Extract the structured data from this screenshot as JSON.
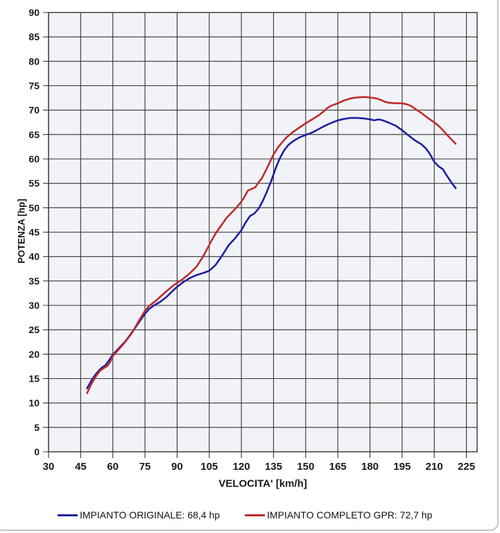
{
  "chart_data": {
    "type": "line",
    "title": "",
    "xlabel": "VELOCITA' [km/h]",
    "ylabel": "POTENZA [hp]",
    "xlim": [
      30,
      230
    ],
    "ylim": [
      0,
      90
    ],
    "xticks": [
      30,
      45,
      60,
      75,
      90,
      105,
      120,
      135,
      150,
      165,
      180,
      195,
      210,
      225
    ],
    "yticks": [
      0,
      5,
      10,
      15,
      20,
      25,
      30,
      35,
      40,
      45,
      50,
      55,
      60,
      65,
      70,
      75,
      80,
      85,
      90
    ],
    "grid": true,
    "legend_position": "bottom",
    "plot_bg": "#f2f3f8",
    "grid_color": "#333333",
    "label_color": "#1a1a1a",
    "series": [
      {
        "name": "IMPIANTO ORIGINALE: 68,4 hp",
        "color": "#1f1fa0",
        "points": [
          [
            48,
            13.0
          ],
          [
            50,
            14.6
          ],
          [
            52,
            15.9
          ],
          [
            54,
            16.9
          ],
          [
            55,
            17.3
          ],
          [
            56.5,
            17.7
          ],
          [
            58,
            18.6
          ],
          [
            60,
            19.9
          ],
          [
            63,
            21.3
          ],
          [
            66,
            22.7
          ],
          [
            69,
            24.5
          ],
          [
            72,
            26.4
          ],
          [
            75,
            28.3
          ],
          [
            77,
            29.3
          ],
          [
            80,
            30.2
          ],
          [
            82,
            30.7
          ],
          [
            85,
            31.7
          ],
          [
            88,
            33.0
          ],
          [
            90,
            33.8
          ],
          [
            93,
            34.8
          ],
          [
            96,
            35.6
          ],
          [
            99,
            36.2
          ],
          [
            102,
            36.6
          ],
          [
            105,
            37.1
          ],
          [
            108,
            38.3
          ],
          [
            111,
            40.2
          ],
          [
            114,
            42.3
          ],
          [
            117,
            43.7
          ],
          [
            120,
            45.4
          ],
          [
            122,
            47.0
          ],
          [
            124,
            48.3
          ],
          [
            126,
            48.8
          ],
          [
            128,
            49.8
          ],
          [
            130,
            51.4
          ],
          [
            132,
            53.4
          ],
          [
            134,
            55.6
          ],
          [
            136,
            58.1
          ],
          [
            138,
            60.2
          ],
          [
            140,
            61.8
          ],
          [
            142,
            62.9
          ],
          [
            144,
            63.6
          ],
          [
            147,
            64.4
          ],
          [
            150,
            64.9
          ],
          [
            153,
            65.4
          ],
          [
            156,
            66.1
          ],
          [
            159,
            66.8
          ],
          [
            162,
            67.4
          ],
          [
            165,
            67.9
          ],
          [
            168,
            68.2
          ],
          [
            171,
            68.4
          ],
          [
            174,
            68.4
          ],
          [
            177,
            68.3
          ],
          [
            180,
            68.1
          ],
          [
            182,
            67.9
          ],
          [
            184,
            68.1
          ],
          [
            186,
            67.9
          ],
          [
            189,
            67.4
          ],
          [
            192,
            66.8
          ],
          [
            195,
            65.9
          ],
          [
            198,
            64.8
          ],
          [
            201,
            63.8
          ],
          [
            204,
            63.0
          ],
          [
            206,
            62.2
          ],
          [
            208,
            61.0
          ],
          [
            210,
            59.4
          ],
          [
            212,
            58.5
          ],
          [
            214,
            57.9
          ],
          [
            216,
            56.5
          ],
          [
            218,
            55.2
          ],
          [
            220,
            54.0
          ]
        ]
      },
      {
        "name": "IMPIANTO COMPLETO GPR: 72,7 hp",
        "color": "#bf2b2b",
        "points": [
          [
            48,
            12.0
          ],
          [
            50,
            13.9
          ],
          [
            52,
            15.4
          ],
          [
            54,
            16.6
          ],
          [
            56,
            17.2
          ],
          [
            57.5,
            17.6
          ],
          [
            59,
            18.6
          ],
          [
            60,
            19.6
          ],
          [
            63,
            21.1
          ],
          [
            66,
            22.6
          ],
          [
            69,
            24.4
          ],
          [
            72,
            26.7
          ],
          [
            75,
            28.9
          ],
          [
            77,
            29.9
          ],
          [
            80,
            30.9
          ],
          [
            82,
            31.7
          ],
          [
            85,
            32.9
          ],
          [
            88,
            34.0
          ],
          [
            90,
            34.6
          ],
          [
            93,
            35.5
          ],
          [
            96,
            36.6
          ],
          [
            99,
            37.9
          ],
          [
            102,
            39.9
          ],
          [
            105,
            42.4
          ],
          [
            107,
            44.0
          ],
          [
            109,
            45.4
          ],
          [
            111,
            46.6
          ],
          [
            113,
            47.9
          ],
          [
            115,
            48.8
          ],
          [
            117,
            49.7
          ],
          [
            119,
            50.7
          ],
          [
            121,
            51.9
          ],
          [
            123,
            53.5
          ],
          [
            125,
            53.9
          ],
          [
            126.5,
            54.2
          ],
          [
            128,
            55.2
          ],
          [
            129.5,
            56.0
          ],
          [
            131,
            57.3
          ],
          [
            133,
            59.1
          ],
          [
            135,
            60.9
          ],
          [
            137,
            62.3
          ],
          [
            139,
            63.4
          ],
          [
            141,
            64.4
          ],
          [
            144,
            65.5
          ],
          [
            147,
            66.4
          ],
          [
            150,
            67.3
          ],
          [
            153,
            68.1
          ],
          [
            156,
            68.9
          ],
          [
            158,
            69.6
          ],
          [
            160,
            70.4
          ],
          [
            162,
            70.9
          ],
          [
            165,
            71.4
          ],
          [
            168,
            72.0
          ],
          [
            171,
            72.4
          ],
          [
            174,
            72.6
          ],
          [
            177,
            72.7
          ],
          [
            180,
            72.6
          ],
          [
            183,
            72.4
          ],
          [
            185,
            72.1
          ],
          [
            187,
            71.7
          ],
          [
            189,
            71.5
          ],
          [
            192,
            71.4
          ],
          [
            195,
            71.4
          ],
          [
            197,
            71.2
          ],
          [
            199,
            70.9
          ],
          [
            201,
            70.3
          ],
          [
            204,
            69.4
          ],
          [
            207,
            68.4
          ],
          [
            210,
            67.5
          ],
          [
            212,
            66.8
          ],
          [
            214,
            65.9
          ],
          [
            216,
            64.9
          ],
          [
            218,
            64.0
          ],
          [
            220,
            63.1
          ]
        ]
      }
    ]
  }
}
